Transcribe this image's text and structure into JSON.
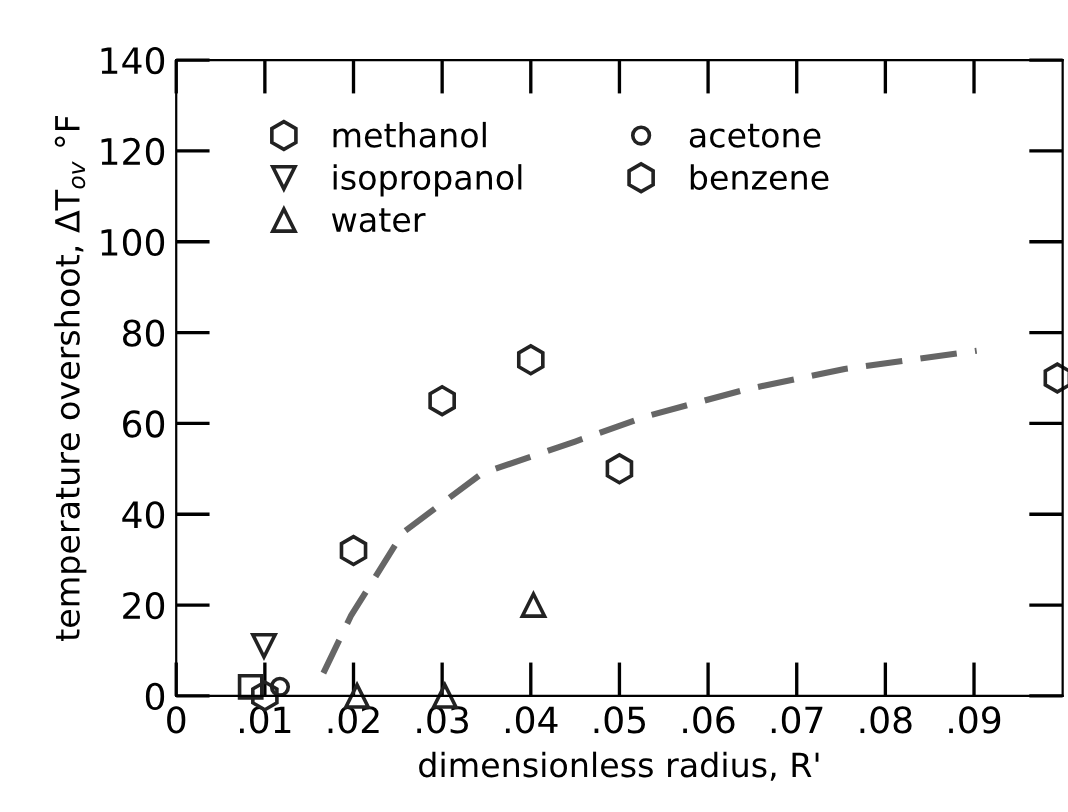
{
  "chart_data": {
    "type": "scatter",
    "xlabel": "dimensionless radius, R'",
    "ylabel": "temperature overshoot, ΔT$_{ov}$ °F",
    "xlim": [
      0,
      0.1
    ],
    "ylim": [
      0,
      140
    ],
    "xticks": [
      0,
      {
        "value": 0.01,
        "label": ".01"
      },
      {
        "value": 0.02,
        "label": ".02"
      },
      {
        "value": 0.03,
        "label": ".03"
      },
      {
        "value": 0.04,
        "label": ".04"
      },
      {
        "value": 0.05,
        "label": ".05"
      },
      {
        "value": 0.06,
        "label": ".06"
      },
      {
        "value": 0.07,
        "label": ".07"
      },
      {
        "value": 0.08,
        "label": ".08"
      },
      {
        "value": 0.09,
        "label": ".09"
      }
    ],
    "yticks": [
      0,
      20,
      40,
      60,
      80,
      100,
      120,
      140
    ],
    "grid": false,
    "legend": "top left",
    "series": [
      {
        "name": "methanol",
        "color": "#222222",
        "x": [
          0.02,
          0.03,
          0.04
        ],
        "values": [
          32,
          65,
          74
        ]
      },
      {
        "name": "isopropanol",
        "color": "#222222",
        "marker": "triangle_down",
        "x": [
          0.0099
        ],
        "values": [
          11
        ]
      },
      {
        "name": "water",
        "color": "#222222",
        "marker": "triangle",
        "x": [
          0.0204,
          0.0303,
          0.0403
        ],
        "values": [
          0,
          0,
          20
        ]
      },
      {
        "name": "acetone",
        "color": "#222222",
        "marker": "circle",
        "x": [
          0.0117
        ],
        "values": [
          2
        ]
      },
      {
        "name": "benzene",
        "color": "#222222",
        "x": [
          0.05,
          0.0994,
          0.01
        ],
        "values": [
          50,
          70,
          0
        ]
      },
      {
        "color": "#222222",
        "marker": "square",
        "x": [
          0.0084
        ],
        "values": [
          2
        ]
      },
      {
        "type": "line",
        "color": "#666666",
        "line_style": "dashed",
        "marker": "none",
        "x": [
          0.0166,
          0.0197,
          0.0256,
          0.0345,
          0.045,
          0.0531,
          0.0643,
          0.0754,
          0.0903
        ],
        "values": [
          5,
          17.6,
          36,
          49,
          56,
          61.6,
          67.5,
          72,
          76
        ]
      }
    ]
  }
}
